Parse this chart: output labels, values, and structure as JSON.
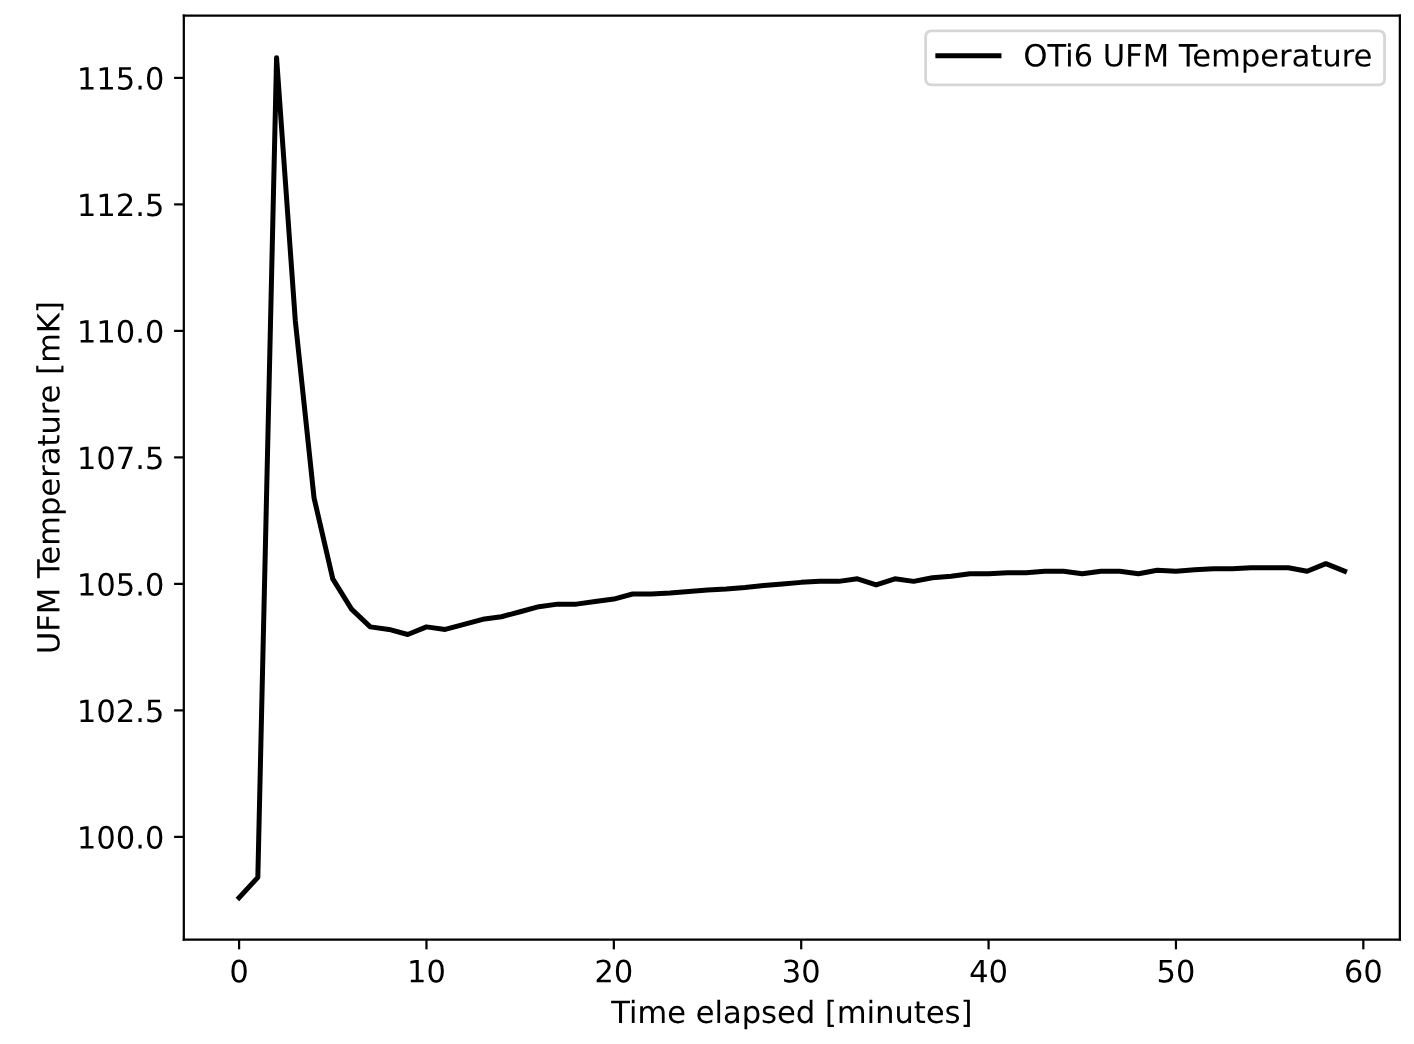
{
  "chart_data": {
    "type": "line",
    "xlabel": "Time elapsed [minutes]",
    "ylabel": "UFM Temperature [mK]",
    "x": [
      0,
      1,
      2,
      3,
      4,
      5,
      6,
      7,
      8,
      9,
      10,
      11,
      12,
      13,
      14,
      15,
      16,
      17,
      18,
      19,
      20,
      21,
      22,
      23,
      24,
      25,
      26,
      27,
      28,
      29,
      30,
      31,
      32,
      33,
      34,
      35,
      36,
      37,
      38,
      39,
      40,
      41,
      42,
      43,
      44,
      45,
      46,
      47,
      48,
      49,
      50,
      51,
      52,
      53,
      54,
      55,
      56,
      57,
      58,
      59
    ],
    "series": [
      {
        "name": "OTi6 UFM Temperature",
        "color": "#000000",
        "values": [
          98.8,
          99.2,
          115.4,
          110.2,
          106.7,
          105.1,
          104.5,
          104.15,
          104.1,
          104.0,
          104.15,
          104.1,
          104.2,
          104.3,
          104.35,
          104.45,
          104.55,
          104.6,
          104.6,
          104.65,
          104.7,
          104.8,
          104.8,
          104.82,
          104.85,
          104.88,
          104.9,
          104.93,
          104.97,
          105.0,
          105.03,
          105.05,
          105.05,
          105.1,
          104.98,
          105.1,
          105.05,
          105.12,
          105.15,
          105.2,
          105.2,
          105.22,
          105.22,
          105.25,
          105.25,
          105.2,
          105.25,
          105.25,
          105.2,
          105.27,
          105.25,
          105.28,
          105.3,
          105.3,
          105.32,
          105.32,
          105.32,
          105.25,
          105.4,
          105.25
        ]
      }
    ],
    "xlim": [
      -2.95,
      61.95
    ],
    "ylim": [
      97.97,
      116.23
    ],
    "xticks": [
      0,
      10,
      20,
      30,
      40,
      50,
      60
    ],
    "yticks": [
      {
        "value": 100,
        "label": "100.0"
      },
      {
        "value": 102.5,
        "label": "102.5"
      },
      {
        "value": 105,
        "label": "105.0"
      },
      {
        "value": 107.5,
        "label": "107.5"
      },
      {
        "value": 110,
        "label": "110.0"
      },
      {
        "value": 112.5,
        "label": "112.5"
      },
      {
        "value": 115,
        "label": "115.0"
      }
    ],
    "grid": false,
    "legend": "top right",
    "marker": "none",
    "line_style": "solid"
  }
}
